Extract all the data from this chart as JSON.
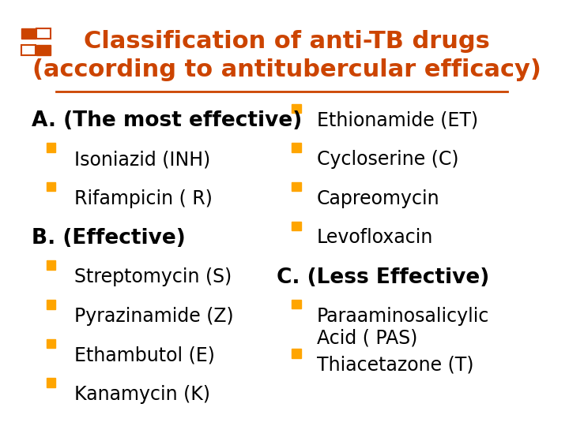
{
  "title_line1": "Classification of anti-TB drugs",
  "title_line2": "(according to antitubercular efficacy)",
  "title_color": "#cc4400",
  "title_fontsize": 22,
  "background_color": "#ffffff",
  "bullet_color": "#FFA500",
  "left_column": [
    {
      "text": "A. (The most effective)",
      "type": "header",
      "indent": 0
    },
    {
      "text": "Isoniazid (INH)",
      "type": "bullet",
      "indent": 1
    },
    {
      "text": "Rifampicin ( R)",
      "type": "bullet",
      "indent": 1
    },
    {
      "text": "B. (Effective)",
      "type": "header",
      "indent": 0
    },
    {
      "text": "Streptomycin (S)",
      "type": "bullet",
      "indent": 1
    },
    {
      "text": "Pyrazinamide (Z)",
      "type": "bullet",
      "indent": 1
    },
    {
      "text": "Ethambutol (E)",
      "type": "bullet",
      "indent": 1
    },
    {
      "text": "Kanamycin (K)",
      "type": "bullet",
      "indent": 1
    }
  ],
  "right_column": [
    {
      "text": "Ethionamide (ET)",
      "type": "bullet",
      "indent": 1
    },
    {
      "text": "Cycloserine (C)",
      "type": "bullet",
      "indent": 1
    },
    {
      "text": "Capreomycin",
      "type": "bullet",
      "indent": 1
    },
    {
      "text": "Levofloxacin",
      "type": "bullet",
      "indent": 1
    },
    {
      "text": "C. (Less Effective)",
      "type": "header",
      "indent": 0
    },
    {
      "text": "Paraaminosalicylic\nAcid ( PAS)",
      "type": "bullet",
      "indent": 1
    },
    {
      "text": "Thiacetazone (T)",
      "type": "bullet",
      "indent": 1
    }
  ],
  "header_fontsize": 19,
  "bullet_fontsize": 17,
  "text_color": "#000000",
  "top_bar_color": "#cc4400",
  "corner_decoration_color": "#cc4400"
}
